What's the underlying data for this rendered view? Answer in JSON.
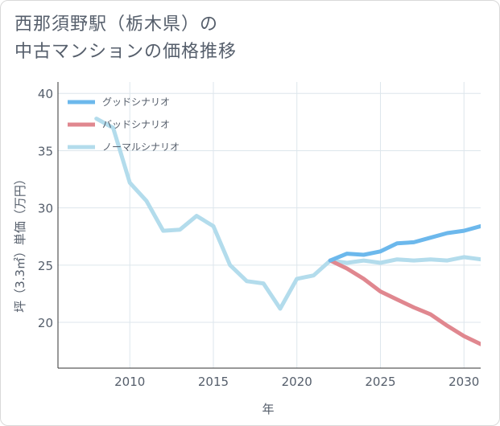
{
  "title_line1": "西那須野駅（栃木県）の",
  "title_line2": "中古マンションの価格推移",
  "chart_data": {
    "type": "line",
    "xlabel": "年",
    "ylabel": "坪（3.3㎡）単価（万円）",
    "xlim": [
      2005.7,
      2031
    ],
    "ylim": [
      16,
      41
    ],
    "xticks": [
      2010,
      2015,
      2020,
      2025,
      2030
    ],
    "yticks": [
      20,
      25,
      30,
      35,
      40
    ],
    "grid": true,
    "legend_position": "top-left",
    "series": [
      {
        "name": "グッドシナリオ",
        "color": "#6cb8ec",
        "x": [
          2022,
          2023,
          2024,
          2025,
          2026,
          2027,
          2028,
          2029,
          2030,
          2031
        ],
        "y": [
          25.4,
          26.0,
          25.9,
          26.2,
          26.9,
          27.0,
          27.4,
          27.8,
          28.0,
          28.4
        ]
      },
      {
        "name": "バッドシナリオ",
        "color": "#e0878f",
        "x": [
          2022,
          2023,
          2024,
          2025,
          2026,
          2027,
          2028,
          2029,
          2030,
          2031
        ],
        "y": [
          25.4,
          24.7,
          23.8,
          22.7,
          22.0,
          21.3,
          20.7,
          19.7,
          18.8,
          18.1
        ]
      },
      {
        "name": "ノーマルシナリオ",
        "color": "#b3dcec",
        "x": [
          2008,
          2009,
          2010,
          2011,
          2012,
          2013,
          2014,
          2015,
          2016,
          2017,
          2018,
          2019,
          2020,
          2021,
          2022,
          2023,
          2024,
          2025,
          2026,
          2027,
          2028,
          2029,
          2030,
          2031
        ],
        "y": [
          37.8,
          37.0,
          32.2,
          30.6,
          28.0,
          28.1,
          29.3,
          28.4,
          25.0,
          23.6,
          23.4,
          21.2,
          23.8,
          24.1,
          25.4,
          25.2,
          25.4,
          25.2,
          25.5,
          25.4,
          25.5,
          25.4,
          25.7,
          25.5
        ]
      }
    ]
  }
}
